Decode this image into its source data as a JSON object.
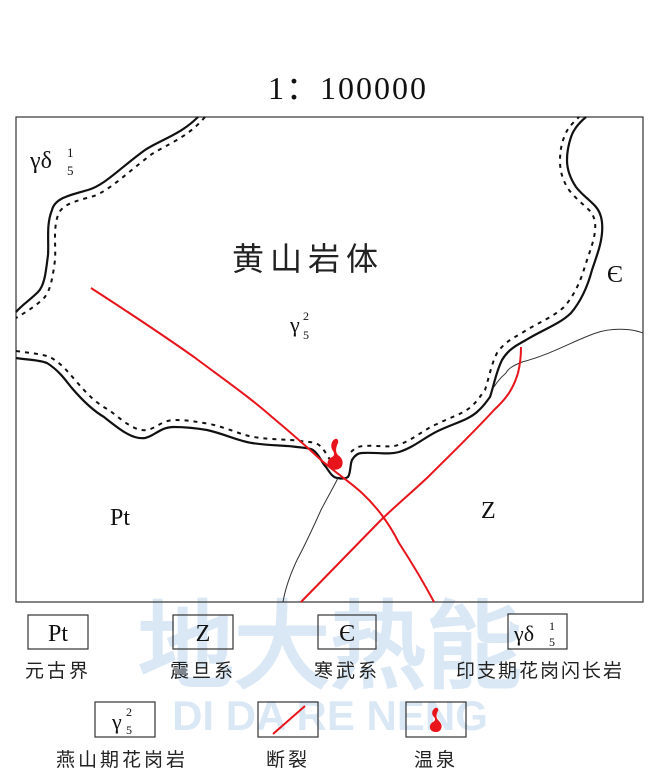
{
  "scale": "1：100000",
  "map": {
    "labels": {
      "granodiorite_symbol": "γδ",
      "granodiorite_sub": "5",
      "granodiorite_sup": "1",
      "pluton_name": "黄山岩体",
      "granite_symbol": "γ",
      "granite_sub": "5",
      "granite_sup": "2",
      "cambrian": "Є",
      "proterozoic": "Pt",
      "sinian": "Z"
    },
    "colors": {
      "fault": "#e8141b",
      "hot_spring": "#e8141b",
      "boundary": "#111111"
    }
  },
  "legend": {
    "items": [
      {
        "symbol": "Pt",
        "label": "元古界"
      },
      {
        "symbol": "Z",
        "label": "震旦系"
      },
      {
        "symbol": "Є",
        "label": "寒武系"
      },
      {
        "symbol": "γδ",
        "sub": "5",
        "sup": "1",
        "label": "印支期花岗闪长岩"
      },
      {
        "symbol": "γ",
        "sub": "5",
        "sup": "2",
        "label": "燕山期花岗岩"
      },
      {
        "symbol_icon": "fault-line",
        "label": "断裂"
      },
      {
        "symbol_icon": "hot-spring",
        "label": "温泉"
      }
    ]
  },
  "watermark": {
    "main": "地大热能",
    "pinyin": "DI DA RE NENG"
  }
}
